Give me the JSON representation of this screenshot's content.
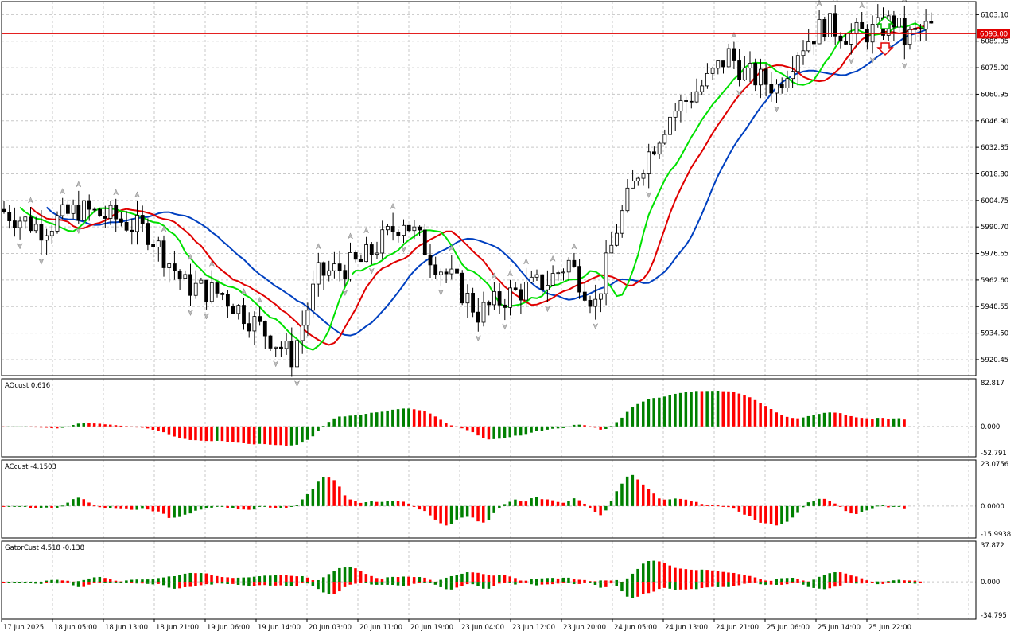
{
  "symbol_price_tag": "6093.00",
  "main": {
    "price_axis": [
      "6103.10",
      "6089.05",
      "6075.00",
      "6060.95",
      "6046.90",
      "6032.85",
      "6018.80",
      "6004.75",
      "5990.70",
      "5976.65",
      "5962.60",
      "5948.55",
      "5934.50",
      "5920.45"
    ],
    "price_range": [
      5912,
      6110
    ],
    "current_price": 6093.0,
    "colors": {
      "bull": "#ffffff",
      "bear": "#000000",
      "lips": "#00e000",
      "teeth": "#e00000",
      "jaw": "#0040c0",
      "price_line": "#e00000"
    },
    "fractal_up_arrow_color": "#00c000",
    "fractal_down_arrow_color": "#e00000"
  },
  "ao": {
    "label": "AOcust 0.616",
    "axis": [
      "82.817",
      "0.000",
      "-52.791"
    ],
    "range": [
      -52.791,
      82.817
    ],
    "colors": {
      "up": "#008000",
      "down": "#ff0000"
    }
  },
  "ac": {
    "label": "ACcust -4.1503",
    "axis": [
      "23.0756",
      "0.0000",
      "-15.9938"
    ],
    "range": [
      -15.9938,
      23.0756
    ],
    "colors": {
      "up": "#008000",
      "down": "#ff0000"
    }
  },
  "gator": {
    "label": "GatorCust 4.518 -0.138",
    "axis": [
      "37.872",
      "0.000",
      "-34.795"
    ],
    "range": [
      -34.795,
      37.872
    ]
  },
  "time_axis": [
    "17 Jun 2025",
    "18 Jun 05:00",
    "18 Jun 13:00",
    "18 Jun 21:00",
    "19 Jun 06:00",
    "19 Jun 14:00",
    "20 Jun 03:00",
    "20 Jun 11:00",
    "20 Jun 19:00",
    "23 Jun 04:00",
    "23 Jun 12:00",
    "23 Jun 20:00",
    "24 Jun 05:00",
    "24 Jun 13:00",
    "24 Jun 21:00",
    "25 Jun 06:00",
    "25 Jun 14:00",
    "25 Jun 22:00"
  ]
}
